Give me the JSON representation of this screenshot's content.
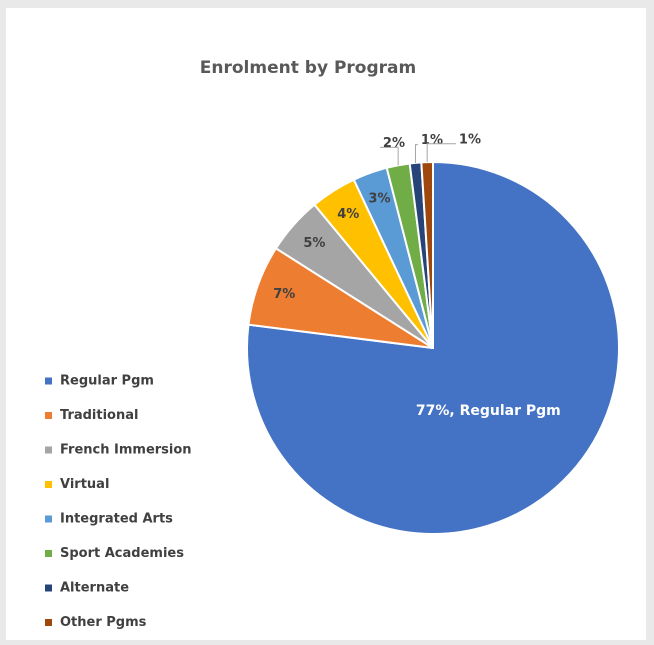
{
  "chart_data": {
    "type": "pie",
    "title": "Enrolment by Program",
    "categories": [
      "Regular Pgm",
      "Traditional",
      "French Immersion",
      "Virtual",
      "Integrated Arts",
      "Sport Academies",
      "Alternate",
      "Other Pgms"
    ],
    "values": [
      77,
      7,
      5,
      4,
      3,
      2,
      1,
      1
    ],
    "value_labels": [
      "77%, Regular Pgm",
      "7%",
      "5%",
      "4%",
      "3%",
      "2%",
      "1%",
      "1%"
    ],
    "colors": [
      "#4472c4",
      "#ed7d31",
      "#a5a5a5",
      "#ffc000",
      "#5b9bd5",
      "#70ad47",
      "#264478",
      "#9e480e"
    ],
    "legend": "left"
  }
}
